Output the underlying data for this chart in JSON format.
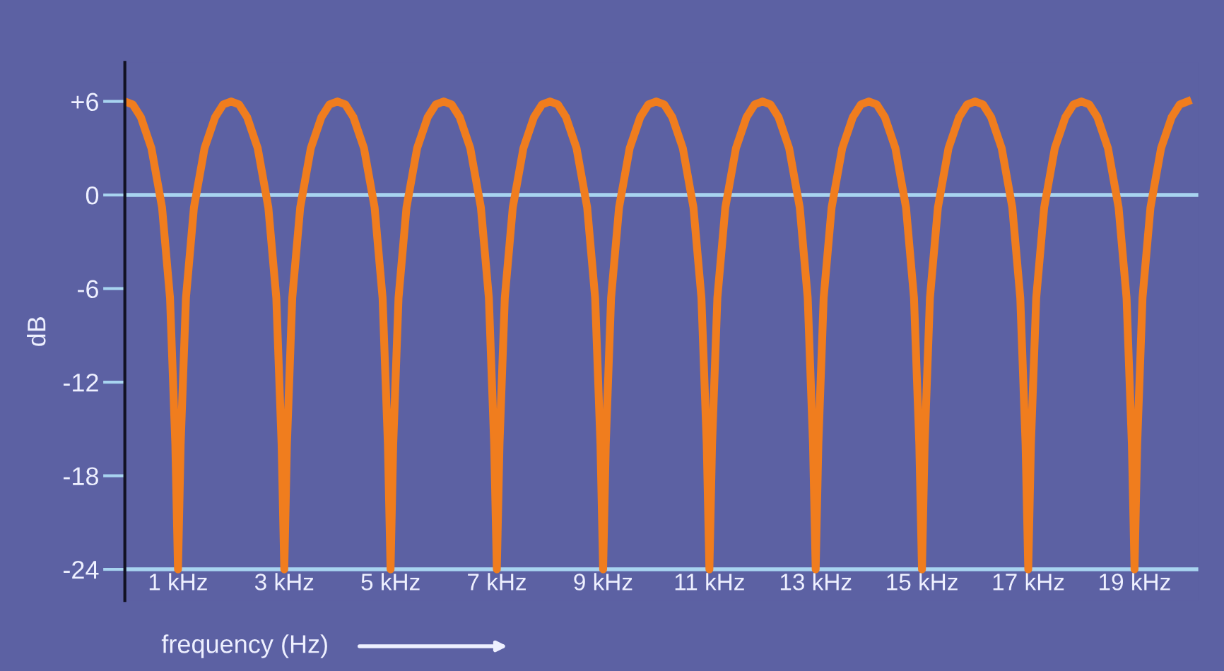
{
  "chart_data": {
    "type": "line",
    "xlabel": "frequency (Hz)",
    "ylabel": "dB",
    "x": [
      0,
      0.15,
      0.3,
      0.5,
      0.7,
      0.85,
      0.95,
      1,
      1.05,
      1.15,
      1.3,
      1.5,
      1.7,
      1.85,
      2,
      2.15,
      2.3,
      2.5,
      2.7,
      2.85,
      2.95,
      3,
      3.05,
      3.15,
      3.3,
      3.5,
      3.7,
      3.85,
      4,
      4.15,
      4.3,
      4.5,
      4.7,
      4.85,
      4.95,
      5,
      5.05,
      5.15,
      5.3,
      5.5,
      5.7,
      5.85,
      6,
      6.15,
      6.3,
      6.5,
      6.7,
      6.85,
      6.95,
      7,
      7.05,
      7.15,
      7.3,
      7.5,
      7.7,
      7.85,
      8,
      8.15,
      8.3,
      8.5,
      8.7,
      8.85,
      8.95,
      9,
      9.05,
      9.15,
      9.3,
      9.5,
      9.7,
      9.85,
      10,
      10.15,
      10.3,
      10.5,
      10.7,
      10.85,
      10.95,
      11,
      11.05,
      11.15,
      11.3,
      11.5,
      11.7,
      11.85,
      12,
      12.15,
      12.3,
      12.5,
      12.7,
      12.85,
      12.95,
      13,
      13.05,
      13.15,
      13.3,
      13.5,
      13.7,
      13.85,
      14,
      14.15,
      14.3,
      14.5,
      14.7,
      14.85,
      14.95,
      15,
      15.05,
      15.15,
      15.3,
      15.5,
      15.7,
      15.85,
      16,
      16.15,
      16.3,
      16.5,
      16.7,
      16.85,
      16.95,
      17,
      17.05,
      17.15,
      17.3,
      17.5,
      17.7,
      17.85,
      18,
      18.15,
      18.3,
      18.5,
      18.7,
      18.85,
      18.95,
      19,
      19.05,
      19.15,
      19.3,
      19.5,
      19.7,
      19.85,
      20
    ],
    "series": [
      {
        "color": "#f07d1e",
        "values": [
          6,
          5.8,
          5,
          3,
          -0.8,
          -6.6,
          -16,
          -24,
          -16,
          -6.6,
          -0.8,
          3,
          5,
          5.8,
          6,
          5.8,
          5,
          3,
          -0.8,
          -6.6,
          -16,
          -24,
          -16,
          -6.6,
          -0.8,
          3,
          5,
          5.8,
          6,
          5.8,
          5,
          3,
          -0.8,
          -6.6,
          -16,
          -24,
          -16,
          -6.6,
          -0.8,
          3,
          5,
          5.8,
          6,
          5.8,
          5,
          3,
          -0.8,
          -6.6,
          -16,
          -24,
          -16,
          -6.6,
          -0.8,
          3,
          5,
          5.8,
          6,
          5.8,
          5,
          3,
          -0.8,
          -6.6,
          -16,
          -24,
          -16,
          -6.6,
          -0.8,
          3,
          5,
          5.8,
          6,
          5.8,
          5,
          3,
          -0.8,
          -6.6,
          -16,
          -24,
          -16,
          -6.6,
          -0.8,
          3,
          5,
          5.8,
          6,
          5.8,
          5,
          3,
          -0.8,
          -6.6,
          -16,
          -24,
          -16,
          -6.6,
          -0.8,
          3,
          5,
          5.8,
          6,
          5.8,
          5,
          3,
          -0.8,
          -6.6,
          -16,
          -24,
          -16,
          -6.6,
          -0.8,
          3,
          5,
          5.8,
          6,
          5.8,
          5,
          3,
          -0.8,
          -6.6,
          -16,
          -24,
          -16,
          -6.6,
          -0.8,
          3,
          5,
          5.8,
          6,
          5.8,
          5,
          3,
          -0.8,
          -6.6,
          -16,
          -24,
          -16,
          -6.6,
          -0.8,
          3,
          5,
          5.8,
          6
        ]
      }
    ],
    "xlim": [
      0,
      20.2
    ],
    "xticks": [
      {
        "value": 1,
        "label": "1 kHz"
      },
      {
        "value": 3,
        "label": "3 kHz"
      },
      {
        "value": 5,
        "label": "5 kHz"
      },
      {
        "value": 7,
        "label": "7 kHz"
      },
      {
        "value": 9,
        "label": "9 kHz"
      },
      {
        "value": 11,
        "label": "11 kHz"
      },
      {
        "value": 13,
        "label": "13 kHz"
      },
      {
        "value": 15,
        "label": "15 kHz"
      },
      {
        "value": 17,
        "label": "17 kHz"
      },
      {
        "value": 19,
        "label": "19 kHz"
      }
    ],
    "ylim": [
      -26,
      8.5
    ],
    "yticks": [
      {
        "value": 6,
        "label": "+6"
      },
      0,
      -6,
      -12,
      -18,
      -24
    ],
    "ref_lines": [
      {
        "axis": "y",
        "value": 0,
        "color": "#a8d4f0"
      },
      {
        "axis": "y",
        "value": -24,
        "color": "#a8d4f0"
      }
    ],
    "grid": false,
    "legend": false,
    "marker": "none",
    "line_style": "solid"
  }
}
